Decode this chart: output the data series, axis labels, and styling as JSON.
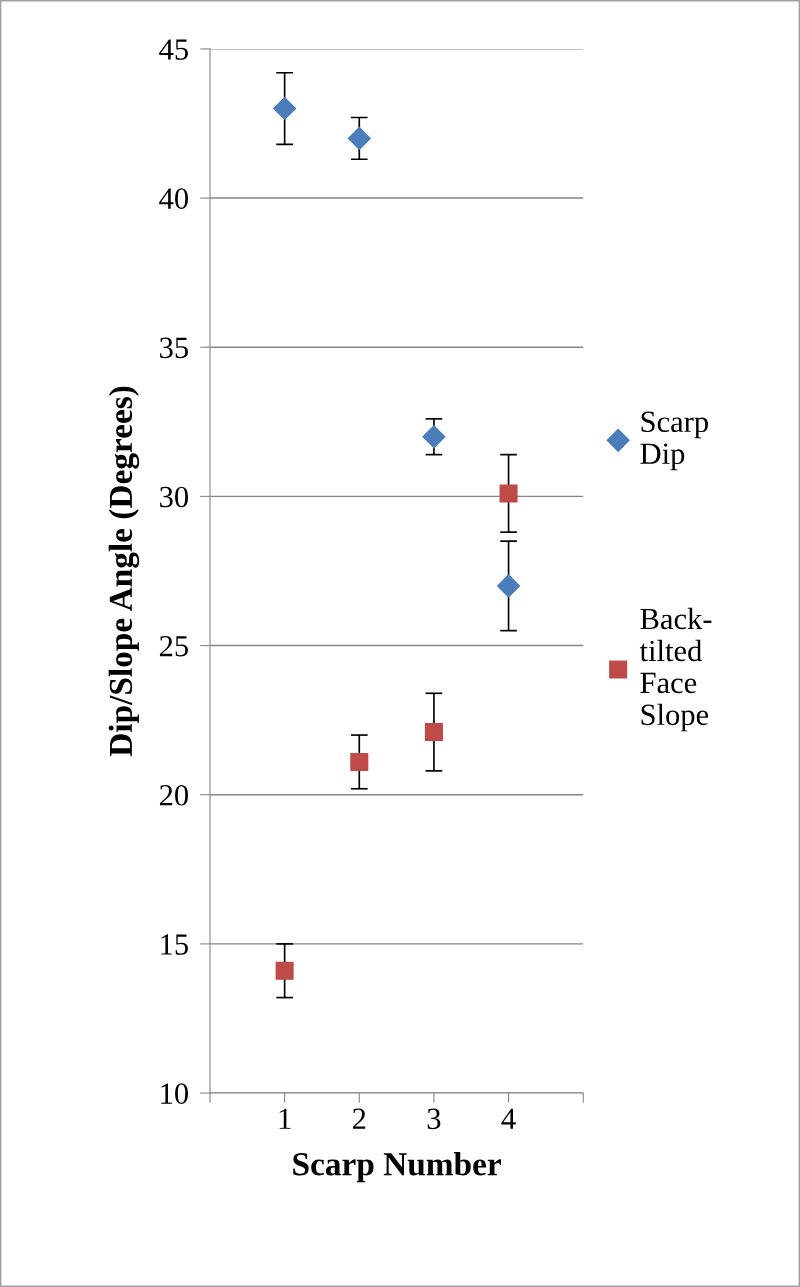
{
  "chart_data": {
    "type": "scatter",
    "xlabel": "Scarp Number",
    "ylabel": "Dip/Slope Angle (Degrees)",
    "x": [
      1,
      2,
      3,
      4
    ],
    "series": [
      {
        "name": "Scarp Dip",
        "color": "#4a7ebb",
        "marker": "diamond",
        "values": [
          43,
          42,
          32,
          27
        ],
        "errors": [
          1.2,
          0.7,
          0.6,
          1.5
        ]
      },
      {
        "name": "Back-tilted Face Slope",
        "color": "#be4b48",
        "marker": "square",
        "values": [
          14.1,
          21.1,
          22.1,
          30.1
        ],
        "errors": [
          0.9,
          0.9,
          1.3,
          1.3
        ]
      }
    ],
    "xlim": [
      0,
      5
    ],
    "xticks": [
      {
        "value": 0,
        "label": null
      },
      1,
      2,
      3,
      4,
      {
        "value": 5,
        "label": null
      }
    ],
    "ylim": [
      10,
      45
    ],
    "yticks": [
      10,
      15,
      20,
      25,
      30,
      35,
      40,
      45
    ],
    "grid": "y",
    "legend": "right"
  }
}
